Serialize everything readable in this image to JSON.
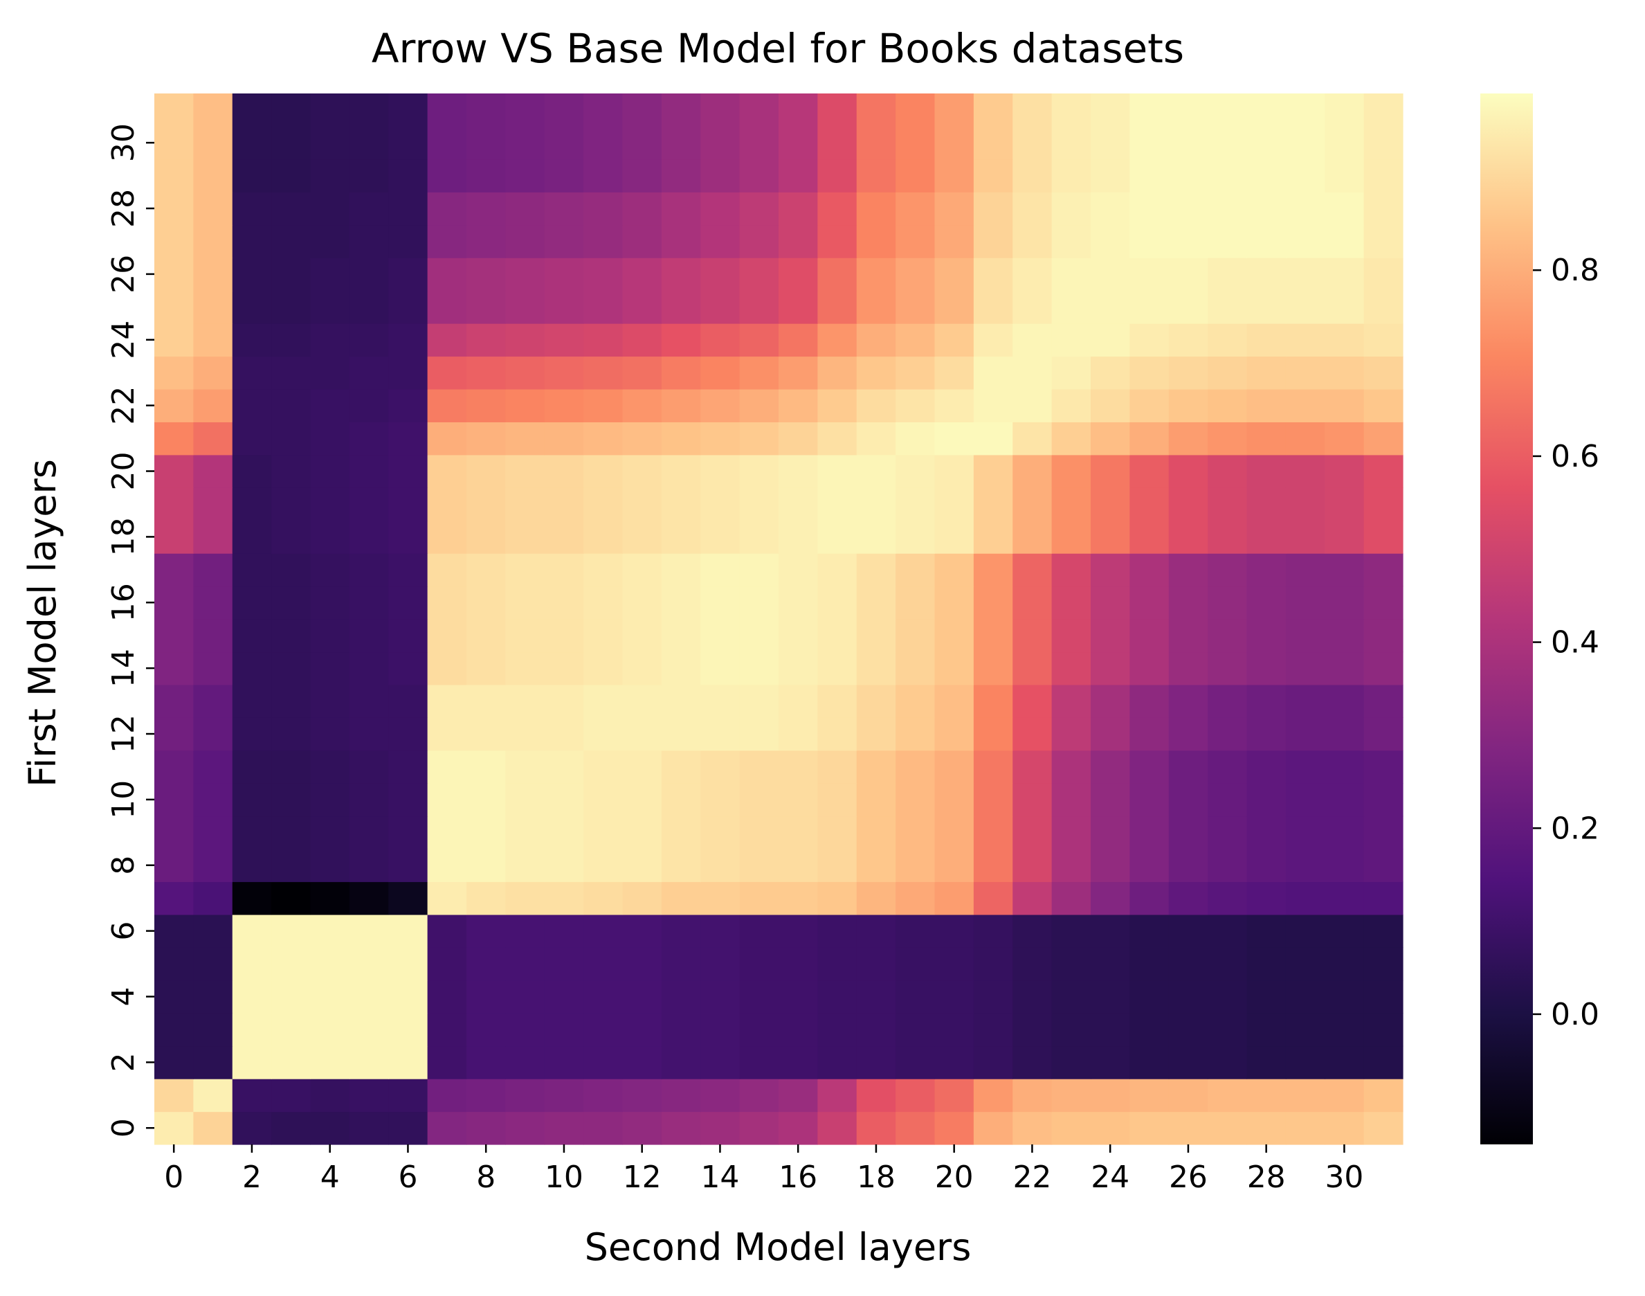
{
  "chart_data": {
    "type": "heatmap",
    "title": "Arrow VS Base Model for Books datasets",
    "xlabel": "Second Model layers",
    "ylabel": "First Model layers",
    "n_rows": 32,
    "n_cols": 32,
    "x_tick_labels": [
      "0",
      "2",
      "4",
      "6",
      "8",
      "10",
      "12",
      "14",
      "16",
      "18",
      "20",
      "22",
      "24",
      "26",
      "28",
      "30"
    ],
    "y_tick_labels": [
      "0",
      "2",
      "4",
      "6",
      "8",
      "10",
      "12",
      "14",
      "16",
      "18",
      "20",
      "22",
      "24",
      "26",
      "28",
      "30"
    ],
    "colorbar": {
      "colormap": "magma",
      "vmin": -0.14,
      "vmax": 0.99,
      "ticks": [
        0.0,
        0.2,
        0.4,
        0.6,
        0.8
      ],
      "tick_labels": [
        "0.0",
        "0.2",
        "0.4",
        "0.6",
        "0.8"
      ]
    },
    "row_profiles": [
      {
        "rows": [
          0
        ],
        "values": [
          0.95,
          0.89,
          0.06,
          0.05,
          0.05,
          0.06,
          0.06,
          0.29,
          0.3,
          0.31,
          0.32,
          0.32,
          0.33,
          0.35,
          0.36,
          0.38,
          0.4,
          0.48,
          0.6,
          0.64,
          0.68,
          0.8,
          0.84,
          0.85,
          0.85,
          0.86,
          0.86,
          0.86,
          0.86,
          0.86,
          0.86,
          0.88
        ]
      },
      {
        "rows": [
          1
        ],
        "values": [
          0.9,
          0.96,
          0.08,
          0.08,
          0.07,
          0.08,
          0.08,
          0.24,
          0.25,
          0.26,
          0.27,
          0.28,
          0.29,
          0.3,
          0.31,
          0.33,
          0.35,
          0.44,
          0.56,
          0.6,
          0.64,
          0.75,
          0.8,
          0.81,
          0.81,
          0.82,
          0.82,
          0.83,
          0.83,
          0.83,
          0.83,
          0.85
        ]
      },
      {
        "rows": [
          2,
          3,
          4,
          5,
          6
        ],
        "values": [
          0.04,
          0.04,
          0.97,
          0.97,
          0.97,
          0.97,
          0.97,
          0.1,
          0.12,
          0.12,
          0.12,
          0.12,
          0.12,
          0.11,
          0.11,
          0.1,
          0.1,
          0.09,
          0.09,
          0.08,
          0.08,
          0.07,
          0.05,
          0.04,
          0.04,
          0.03,
          0.03,
          0.03,
          0.02,
          0.02,
          0.02,
          0.02
        ]
      },
      {
        "rows": [
          7
        ],
        "values": [
          0.16,
          0.13,
          -0.13,
          -0.14,
          -0.13,
          -0.11,
          -0.08,
          0.95,
          0.93,
          0.92,
          0.92,
          0.91,
          0.9,
          0.88,
          0.88,
          0.87,
          0.87,
          0.86,
          0.82,
          0.79,
          0.76,
          0.62,
          0.46,
          0.36,
          0.29,
          0.23,
          0.19,
          0.17,
          0.16,
          0.15,
          0.15,
          0.15
        ]
      },
      {
        "rows": [
          8,
          9,
          10,
          11
        ],
        "values": [
          0.22,
          0.18,
          0.05,
          0.05,
          0.06,
          0.07,
          0.08,
          0.97,
          0.97,
          0.96,
          0.96,
          0.95,
          0.95,
          0.93,
          0.92,
          0.91,
          0.91,
          0.9,
          0.86,
          0.83,
          0.8,
          0.67,
          0.52,
          0.4,
          0.33,
          0.28,
          0.23,
          0.21,
          0.19,
          0.18,
          0.18,
          0.19
        ]
      },
      {
        "rows": [
          12,
          13
        ],
        "values": [
          0.24,
          0.2,
          0.06,
          0.06,
          0.07,
          0.08,
          0.08,
          0.95,
          0.95,
          0.95,
          0.95,
          0.96,
          0.96,
          0.96,
          0.96,
          0.96,
          0.95,
          0.93,
          0.9,
          0.87,
          0.84,
          0.7,
          0.57,
          0.45,
          0.38,
          0.32,
          0.28,
          0.25,
          0.23,
          0.22,
          0.22,
          0.24
        ]
      },
      {
        "rows": [
          14,
          15,
          16,
          17
        ],
        "values": [
          0.28,
          0.24,
          0.06,
          0.06,
          0.07,
          0.08,
          0.09,
          0.91,
          0.92,
          0.93,
          0.93,
          0.94,
          0.95,
          0.96,
          0.97,
          0.97,
          0.96,
          0.95,
          0.92,
          0.89,
          0.86,
          0.74,
          0.62,
          0.52,
          0.45,
          0.4,
          0.35,
          0.33,
          0.31,
          0.3,
          0.3,
          0.32
        ]
      },
      {
        "rows": [
          18,
          19,
          20
        ],
        "values": [
          0.48,
          0.42,
          0.06,
          0.07,
          0.08,
          0.09,
          0.1,
          0.88,
          0.89,
          0.9,
          0.9,
          0.91,
          0.92,
          0.93,
          0.94,
          0.95,
          0.96,
          0.97,
          0.97,
          0.96,
          0.95,
          0.88,
          0.8,
          0.73,
          0.67,
          0.6,
          0.55,
          0.52,
          0.5,
          0.5,
          0.51,
          0.55
        ]
      },
      {
        "rows": [
          21
        ],
        "values": [
          0.7,
          0.65,
          0.07,
          0.07,
          0.08,
          0.09,
          0.1,
          0.8,
          0.81,
          0.82,
          0.82,
          0.83,
          0.84,
          0.85,
          0.86,
          0.87,
          0.89,
          0.92,
          0.95,
          0.97,
          0.98,
          0.98,
          0.93,
          0.88,
          0.84,
          0.8,
          0.76,
          0.74,
          0.73,
          0.73,
          0.74,
          0.77
        ]
      },
      {
        "rows": [
          22
        ],
        "values": [
          0.8,
          0.76,
          0.07,
          0.07,
          0.08,
          0.08,
          0.09,
          0.68,
          0.69,
          0.7,
          0.71,
          0.72,
          0.74,
          0.76,
          0.78,
          0.8,
          0.83,
          0.87,
          0.91,
          0.93,
          0.95,
          0.97,
          0.97,
          0.94,
          0.91,
          0.88,
          0.86,
          0.85,
          0.84,
          0.84,
          0.84,
          0.86
        ]
      },
      {
        "rows": [
          23
        ],
        "values": [
          0.84,
          0.8,
          0.07,
          0.07,
          0.07,
          0.08,
          0.08,
          0.6,
          0.61,
          0.62,
          0.63,
          0.64,
          0.65,
          0.68,
          0.7,
          0.73,
          0.76,
          0.82,
          0.86,
          0.88,
          0.91,
          0.97,
          0.97,
          0.96,
          0.93,
          0.91,
          0.9,
          0.89,
          0.88,
          0.88,
          0.88,
          0.89
        ]
      },
      {
        "rows": [
          24
        ],
        "values": [
          0.88,
          0.84,
          0.06,
          0.06,
          0.07,
          0.07,
          0.08,
          0.47,
          0.49,
          0.5,
          0.51,
          0.52,
          0.54,
          0.57,
          0.6,
          0.62,
          0.66,
          0.74,
          0.8,
          0.83,
          0.87,
          0.95,
          0.97,
          0.97,
          0.97,
          0.95,
          0.94,
          0.93,
          0.92,
          0.92,
          0.92,
          0.93
        ]
      },
      {
        "rows": [
          25,
          26
        ],
        "values": [
          0.88,
          0.84,
          0.05,
          0.05,
          0.06,
          0.06,
          0.07,
          0.37,
          0.38,
          0.39,
          0.4,
          0.41,
          0.43,
          0.46,
          0.48,
          0.51,
          0.55,
          0.65,
          0.74,
          0.78,
          0.82,
          0.92,
          0.95,
          0.97,
          0.97,
          0.97,
          0.97,
          0.96,
          0.96,
          0.96,
          0.96,
          0.94
        ]
      },
      {
        "rows": [
          27,
          28
        ],
        "values": [
          0.88,
          0.84,
          0.05,
          0.05,
          0.05,
          0.06,
          0.06,
          0.3,
          0.31,
          0.32,
          0.33,
          0.34,
          0.36,
          0.39,
          0.42,
          0.45,
          0.49,
          0.59,
          0.7,
          0.74,
          0.79,
          0.89,
          0.93,
          0.96,
          0.97,
          0.98,
          0.98,
          0.98,
          0.98,
          0.98,
          0.98,
          0.95
        ]
      },
      {
        "rows": [
          29,
          30,
          31
        ],
        "values": [
          0.88,
          0.84,
          0.04,
          0.04,
          0.05,
          0.05,
          0.06,
          0.23,
          0.24,
          0.25,
          0.26,
          0.28,
          0.3,
          0.33,
          0.36,
          0.39,
          0.43,
          0.54,
          0.66,
          0.7,
          0.76,
          0.87,
          0.92,
          0.95,
          0.96,
          0.98,
          0.98,
          0.98,
          0.98,
          0.98,
          0.97,
          0.95
        ]
      }
    ]
  }
}
